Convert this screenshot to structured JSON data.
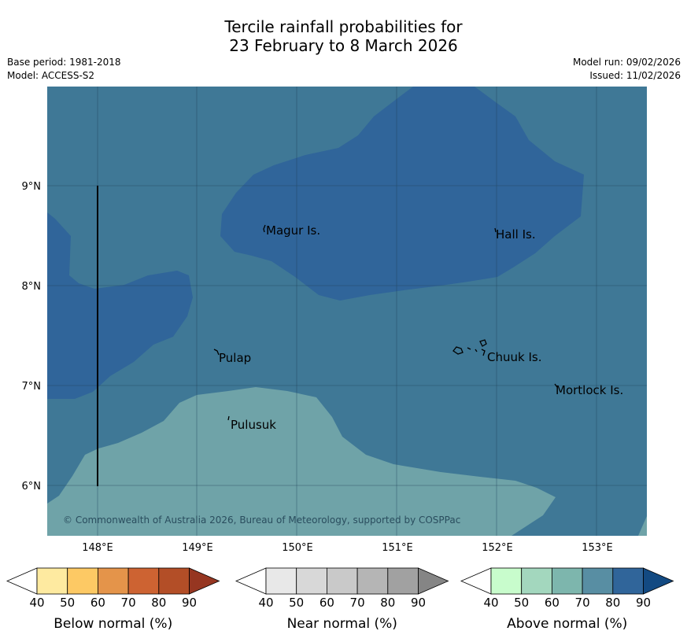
{
  "title": {
    "line1": "Tercile rainfall probabilities for",
    "line2": "23 February to 8 March 2026"
  },
  "meta": {
    "base_period": "Base period: 1981-2018",
    "model": "Model: ACCESS-S2",
    "model_run": "Model run: 09/02/2026",
    "issued": "Issued: 11/02/2026"
  },
  "map": {
    "latitude_labels": [
      "9°N",
      "8°N",
      "7°N",
      "6°N"
    ],
    "longitude_labels": [
      "148°E",
      "149°E",
      "150°E",
      "151°E",
      "152°E",
      "153°E"
    ],
    "places": [
      "Magur Is.",
      "Hall Is.",
      "Pulap",
      "Chuuk Is.",
      "Mortlock Is.",
      "Pulusuk"
    ],
    "copyright": "© Commonwealth of Australia 2026, Bureau of Meteorology, supported by COSPPac",
    "colors": {
      "above_70": "#3f7896",
      "above_80": "#30659a",
      "above_60": "#6fa3a8"
    }
  },
  "legend": {
    "below": {
      "title": "Below normal (%)",
      "ticks": [
        "40",
        "50",
        "60",
        "70",
        "80",
        "90"
      ],
      "colors": [
        "#ffffff",
        "#feeaa0",
        "#fdc964",
        "#e4944a",
        "#cd6332",
        "#b34e27",
        "#963621"
      ]
    },
    "near": {
      "title": "Near normal (%)",
      "ticks": [
        "40",
        "50",
        "60",
        "70",
        "80",
        "90"
      ],
      "colors": [
        "#ffffff",
        "#e8e8e8",
        "#d8d8d8",
        "#c9c9c9",
        "#b5b5b5",
        "#a1a1a1",
        "#858585"
      ]
    },
    "above": {
      "title": "Above normal (%)",
      "ticks": [
        "40",
        "50",
        "60",
        "70",
        "80",
        "90"
      ],
      "colors": [
        "#ffffff",
        "#c8fccc",
        "#a3d7be",
        "#7db6ad",
        "#588ea3",
        "#30659a",
        "#134a82"
      ]
    }
  }
}
